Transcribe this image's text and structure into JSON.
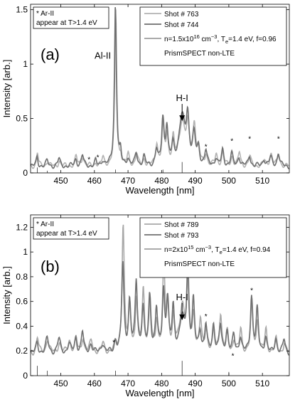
{
  "chart_data": [
    {
      "type": "line",
      "panel_label": "(a)",
      "xlabel": "Wavelength [nm]",
      "ylabel": "Intensity [arb.]",
      "xlim": [
        441,
        518
      ],
      "ylim": [
        0,
        1.55
      ],
      "xticks": [
        450,
        460,
        470,
        480,
        490,
        500,
        510
      ],
      "yticks": [
        0,
        0.5,
        1,
        1.5
      ],
      "ytick_labels": [
        "0",
        "0.5",
        "1",
        "1.5"
      ],
      "note_lines": [
        "* Ar-II",
        "appear at T>1.4 eV"
      ],
      "legend_position": "top-right",
      "legend": [
        {
          "label": "Shot # 763",
          "color": "#b3b3b3"
        },
        {
          "label": "Shot # 744",
          "color": "#6e6e6e"
        },
        {
          "label_prefix": "n=1.5x10",
          "label_exp1": "16",
          "label_mid": " cm",
          "label_exp2": "−3",
          "label_mid2": ", T",
          "label_sub": "e",
          "label_suffix": "=1.4 eV, f=0.96",
          "color": "#555555"
        },
        {
          "label": "PrismSPECT non-LTE",
          "color": "#555555",
          "is_note": true
        }
      ],
      "annotations": [
        {
          "text": "Al-II",
          "x": 466.3,
          "y": 1.05
        },
        {
          "text": "H-I",
          "x": 486.1,
          "y": 0.66,
          "arrow": true
        }
      ],
      "stars": [
        [
          458.4,
          0.1
        ],
        [
          461.0,
          0.12
        ],
        [
          493.2,
          0.22
        ],
        [
          500.9,
          0.27
        ],
        [
          506.2,
          0.29
        ],
        [
          514.8,
          0.29
        ]
      ],
      "baseline": 0.06,
      "peaks": [
        {
          "x": 443.0,
          "a": 0.1,
          "w": 0.3
        },
        {
          "x": 446.0,
          "a": 0.05,
          "w": 0.4
        },
        {
          "x": 449.5,
          "a": 0.06,
          "w": 0.4
        },
        {
          "x": 454.5,
          "a": 0.07,
          "w": 0.4
        },
        {
          "x": 456.5,
          "a": 0.1,
          "w": 0.4
        },
        {
          "x": 460.4,
          "a": 0.04,
          "w": 0.3
        },
        {
          "x": 462.5,
          "a": 0.06,
          "w": 0.4
        },
        {
          "x": 466.3,
          "a": 1.5,
          "w": 0.35
        },
        {
          "x": 467.8,
          "a": 0.1,
          "w": 0.3
        },
        {
          "x": 470.0,
          "a": 0.08,
          "w": 0.4
        },
        {
          "x": 472.5,
          "a": 0.12,
          "w": 0.4
        },
        {
          "x": 474.8,
          "a": 0.07,
          "w": 0.4
        },
        {
          "x": 478.5,
          "a": 0.16,
          "w": 0.4
        },
        {
          "x": 480.4,
          "a": 0.42,
          "w": 0.4
        },
        {
          "x": 481.6,
          "a": 0.3,
          "w": 0.4
        },
        {
          "x": 483.4,
          "a": 0.18,
          "w": 0.4
        },
        {
          "x": 486.1,
          "a": 0.44,
          "w": 1.1
        },
        {
          "x": 487.8,
          "a": 0.35,
          "w": 0.5
        },
        {
          "x": 489.7,
          "a": 0.3,
          "w": 0.5
        },
        {
          "x": 491.0,
          "a": 0.14,
          "w": 0.4
        },
        {
          "x": 493.2,
          "a": 0.12,
          "w": 0.4
        },
        {
          "x": 496.2,
          "a": 0.08,
          "w": 0.4
        },
        {
          "x": 498.2,
          "a": 0.14,
          "w": 0.4
        },
        {
          "x": 500.9,
          "a": 0.1,
          "w": 0.4
        },
        {
          "x": 503.1,
          "a": 0.1,
          "w": 0.4
        },
        {
          "x": 506.2,
          "a": 0.1,
          "w": 0.4
        },
        {
          "x": 510.5,
          "a": 0.06,
          "w": 0.4
        },
        {
          "x": 512.5,
          "a": 0.09,
          "w": 0.5
        },
        {
          "x": 514.8,
          "a": 0.12,
          "w": 0.4
        }
      ],
      "model_lines": [
        [
          443.0,
          0.05
        ],
        [
          446.0,
          0.02
        ],
        [
          466.3,
          0.03
        ],
        [
          480.4,
          0.03
        ],
        [
          486.1,
          0.1
        ]
      ]
    },
    {
      "type": "line",
      "panel_label": "(b)",
      "xlabel": "Wavelength [nm]",
      "ylabel": "Intensity [arb.]",
      "xlim": [
        441,
        518
      ],
      "ylim": [
        0,
        1.3
      ],
      "xticks": [
        450,
        460,
        470,
        480,
        490,
        500,
        510
      ],
      "yticks": [
        0,
        0.2,
        0.4,
        0.6,
        0.8,
        1,
        1.2
      ],
      "ytick_labels": [
        "0",
        "0.2",
        "0.4",
        "0.6",
        "0.8",
        "1",
        "1.2"
      ],
      "note_lines": [
        "* Ar-II",
        "appear at T>1.4 eV"
      ],
      "legend_position": "top-right",
      "legend": [
        {
          "label": "Shot # 789",
          "color": "#a8a8a8"
        },
        {
          "label": "Shot # 793",
          "color": "#707070"
        },
        {
          "label_prefix": "n=2x10",
          "label_exp1": "15",
          "label_mid": " cm",
          "label_exp2": "−3",
          "label_mid2": ", T",
          "label_sub": "e",
          "label_suffix": "=1.4 eV, f=0.94",
          "color": "#555555"
        },
        {
          "label": "PrismSPECT non-LTE",
          "color": "#555555",
          "is_note": true
        }
      ],
      "annotations": [
        {
          "text": "H-I",
          "x": 486.1,
          "y": 0.61,
          "arrow": true
        }
      ],
      "stars": [
        [
          465.8,
          0.25
        ],
        [
          493.2,
          0.46
        ],
        [
          501.2,
          0.14
        ],
        [
          506.8,
          0.67
        ]
      ],
      "baseline": 0.18,
      "peaks": [
        {
          "x": 443.0,
          "a": 0.1,
          "w": 0.4
        },
        {
          "x": 446.0,
          "a": 0.12,
          "w": 0.5
        },
        {
          "x": 449.5,
          "a": 0.1,
          "w": 0.5
        },
        {
          "x": 452.5,
          "a": 0.08,
          "w": 0.5
        },
        {
          "x": 454.5,
          "a": 0.12,
          "w": 0.4
        },
        {
          "x": 456.5,
          "a": 0.15,
          "w": 0.4
        },
        {
          "x": 459.0,
          "a": 0.08,
          "w": 0.5
        },
        {
          "x": 462.5,
          "a": 0.08,
          "w": 0.5
        },
        {
          "x": 466.3,
          "a": 0.08,
          "w": 0.4
        },
        {
          "x": 468.5,
          "a": 0.82,
          "w": 0.4
        },
        {
          "x": 470.5,
          "a": 0.4,
          "w": 0.4
        },
        {
          "x": 472.5,
          "a": 0.5,
          "w": 0.4
        },
        {
          "x": 474.5,
          "a": 0.4,
          "w": 0.4
        },
        {
          "x": 476.5,
          "a": 0.45,
          "w": 0.4
        },
        {
          "x": 478.5,
          "a": 0.3,
          "w": 0.4
        },
        {
          "x": 480.6,
          "a": 0.55,
          "w": 0.4
        },
        {
          "x": 481.8,
          "a": 0.4,
          "w": 0.4
        },
        {
          "x": 483.5,
          "a": 0.3,
          "w": 0.4
        },
        {
          "x": 486.1,
          "a": 0.3,
          "w": 0.9
        },
        {
          "x": 487.8,
          "a": 0.62,
          "w": 0.4
        },
        {
          "x": 489.5,
          "a": 0.35,
          "w": 0.4
        },
        {
          "x": 491.5,
          "a": 0.2,
          "w": 0.4
        },
        {
          "x": 493.2,
          "a": 0.22,
          "w": 0.4
        },
        {
          "x": 495.5,
          "a": 0.2,
          "w": 0.4
        },
        {
          "x": 497.5,
          "a": 0.25,
          "w": 0.4
        },
        {
          "x": 499.5,
          "a": 0.18,
          "w": 0.4
        },
        {
          "x": 501.5,
          "a": 0.12,
          "w": 0.4
        },
        {
          "x": 503.5,
          "a": 0.15,
          "w": 0.4
        },
        {
          "x": 506.8,
          "a": 0.45,
          "w": 0.4
        },
        {
          "x": 508.5,
          "a": 0.3,
          "w": 0.4
        },
        {
          "x": 511.0,
          "a": 0.15,
          "w": 0.4
        },
        {
          "x": 514.0,
          "a": 0.12,
          "w": 0.4
        },
        {
          "x": 516.5,
          "a": 0.1,
          "w": 0.4
        }
      ],
      "model_lines": [
        [
          443.0,
          0.08
        ],
        [
          446.0,
          0.04
        ],
        [
          466.3,
          0.04
        ],
        [
          486.1,
          0.12
        ],
        [
          500.0,
          0.03
        ]
      ]
    }
  ]
}
